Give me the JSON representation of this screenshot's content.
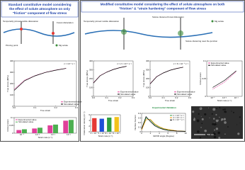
{
  "left": {
    "title": [
      "Standard constitutive model considering",
      "the effect of solute atmosphere on only",
      "\"friction\" component of flow stress"
    ],
    "labels": [
      "Temporarily pinned mobile dislocation",
      "Forest dislocation",
      "Pinning point",
      "Mg solute"
    ]
  },
  "right": {
    "title": [
      "Modified constitutive model considering the effect of solute atmosphere on both",
      "\"friction\" & \"strain hardening\" component of flow stress"
    ],
    "labels": [
      "Temporarily pinned mobile dislocation",
      "Solute clustered forest dislocation",
      "Solute clustering near the junction",
      "Mg solute"
    ],
    "validation": "Experimental Validation"
  },
  "micrograph": {
    "scale": "200 nm"
  },
  "chart_data": [
    {
      "type": "line",
      "annotation": "ε̇ = 10⁻³ s⁻¹",
      "xlabel": "True strain",
      "ylabel": "True stress (MPa)",
      "x": [
        0,
        0.05,
        0.1,
        0.15,
        0.2,
        0.25
      ],
      "xlim": [
        0,
        0.3
      ],
      "xticks": [
        {
          "value": 0,
          "label": "0.0"
        },
        {
          "value": 0.1,
          "label": "0.1"
        },
        {
          "value": 0.2,
          "label": "0.2"
        },
        {
          "value": 0.3,
          "label": "0.3"
        }
      ],
      "ylim": [
        0,
        400
      ],
      "yticks": [
        0,
        100,
        200,
        300,
        400
      ],
      "legend": "lower-right",
      "series": [
        {
          "name": "Experimental value",
          "color": "#e0409a",
          "values": [
            150,
            230,
            270,
            300,
            320,
            335
          ]
        },
        {
          "name": "Simulated value",
          "color": "#000000",
          "values": [
            140,
            225,
            268,
            298,
            318,
            334
          ]
        }
      ]
    },
    {
      "type": "bar",
      "xlabel": "Strain rate (s⁻¹)",
      "ylabel": "Critical strain",
      "categories": [
        "10⁻⁴",
        "10⁻³",
        "10⁻²",
        "10⁻¹"
      ],
      "ylim": [
        0,
        0.1
      ],
      "yticks": [
        0,
        0.05,
        0.1
      ],
      "legend": "upper-left",
      "series": [
        {
          "name": "Experimental value",
          "color": "#e0409a",
          "values": [
            0.02,
            0.03,
            0.05,
            0.08
          ]
        },
        {
          "name": "Simulated value",
          "color": "#4caf50",
          "values": [
            0.025,
            0.035,
            0.055,
            0.085
          ]
        }
      ]
    },
    {
      "type": "line",
      "annotation": "ε̇ = 2 × 10⁻³ s⁻¹",
      "xlabel": "True strain",
      "ylabel": "True stress (MPa)",
      "x": [
        0,
        0.05,
        0.1,
        0.15,
        0.2,
        0.25
      ],
      "xlim": [
        0,
        0.3
      ],
      "xticks": [
        {
          "value": 0,
          "label": "0.0"
        },
        {
          "value": 0.1,
          "label": "0.1"
        },
        {
          "value": 0.2,
          "label": "0.2"
        },
        {
          "value": 0.3,
          "label": "0.3"
        }
      ],
      "ylim": [
        0,
        400
      ],
      "yticks": [
        0,
        100,
        200,
        300,
        400
      ],
      "legend": "lower-right",
      "series": [
        {
          "name": "Experimental value",
          "color": "#e0409a",
          "values": [
            155,
            235,
            275,
            305,
            325,
            340
          ]
        },
        {
          "name": "Simulated value",
          "color": "#000000",
          "values": [
            150,
            232,
            273,
            303,
            324,
            339
          ]
        }
      ]
    },
    {
      "type": "line",
      "annotation": "ε̇ = 6 × 10⁻⁴ s⁻¹",
      "xlabel": "True strain",
      "ylabel": "True stress (MPa)",
      "x": [
        0,
        0.05,
        0.1,
        0.15,
        0.2,
        0.25
      ],
      "xlim": [
        0,
        0.3
      ],
      "xticks": [
        {
          "value": 0,
          "label": "0.0"
        },
        {
          "value": 0.1,
          "label": "0.1"
        },
        {
          "value": 0.2,
          "label": "0.2"
        },
        {
          "value": 0.3,
          "label": "0.3"
        }
      ],
      "ylim": [
        0,
        400
      ],
      "yticks": [
        0,
        100,
        200,
        300,
        400
      ],
      "legend": "lower-right",
      "series": [
        {
          "name": "Experimental value",
          "color": "#e0409a",
          "values": [
            145,
            225,
            265,
            295,
            315,
            330
          ]
        },
        {
          "name": "Simulated value",
          "color": "#000000",
          "values": [
            140,
            222,
            264,
            294,
            314,
            329
          ]
        }
      ]
    },
    {
      "type": "line",
      "xlabel": "Strain rate (s⁻¹)",
      "ylabel": "Critical strain",
      "categories": [
        "10⁻⁴",
        "10⁻³",
        "10⁻²"
      ],
      "ylim": [
        0,
        0.1
      ],
      "yticks": [
        0,
        0.05,
        0.1
      ],
      "legend": "upper-left",
      "series": [
        {
          "name": "Experimental value",
          "color": "#e0409a",
          "values": [
            0.02,
            0.04,
            0.07
          ]
        },
        {
          "name": "Simulated value",
          "color": "#000000",
          "values": [
            0.025,
            0.045,
            0.072
          ]
        }
      ]
    },
    {
      "type": "bar",
      "xlabel": "Strain rate (s⁻¹)",
      "ylabel": "Dislocation density (m⁻²)",
      "categories": [
        "6 × 10⁻⁴",
        "1 × 10⁻³",
        "2 × 10⁻³",
        "4 × 10⁻³"
      ],
      "ylim": [
        0,
        6
      ],
      "yticks": [
        0,
        2,
        4,
        6
      ],
      "values": [
        4.8,
        4.6,
        5,
        5.2
      ],
      "colors": [
        "#e53935",
        "#1e4fd8",
        "#2e9e3e",
        "#f2c21b"
      ]
    },
    {
      "type": "line",
      "xlabel": "GROD angle (Degree)",
      "ylabel": "Number fraction",
      "x": [
        0,
        1,
        2,
        3,
        4,
        5,
        6,
        8,
        10
      ],
      "xlim": [
        0,
        10
      ],
      "xticks": [
        0,
        2,
        4,
        6,
        8,
        10
      ],
      "ylim": [
        0,
        0.4
      ],
      "yticks": [
        0,
        0.1,
        0.2,
        0.3,
        0.4
      ],
      "legend": "upper-right",
      "series": [
        {
          "name": "1 × 10⁻³ s⁻¹",
          "color": "#2e9e3e",
          "values": [
            0.05,
            0.3,
            0.25,
            0.15,
            0.1,
            0.06,
            0.04,
            0.02,
            0.01
          ]
        },
        {
          "name": "4 × 10⁻³ s⁻¹",
          "color": "#f08c00",
          "values": [
            0.04,
            0.26,
            0.27,
            0.17,
            0.11,
            0.07,
            0.05,
            0.02,
            0.01
          ]
        },
        {
          "name": "6 × 10⁻⁴ s⁻¹",
          "color": "#000000",
          "values": [
            0.06,
            0.33,
            0.22,
            0.13,
            0.08,
            0.05,
            0.03,
            0.015,
            0.01
          ]
        }
      ]
    }
  ]
}
